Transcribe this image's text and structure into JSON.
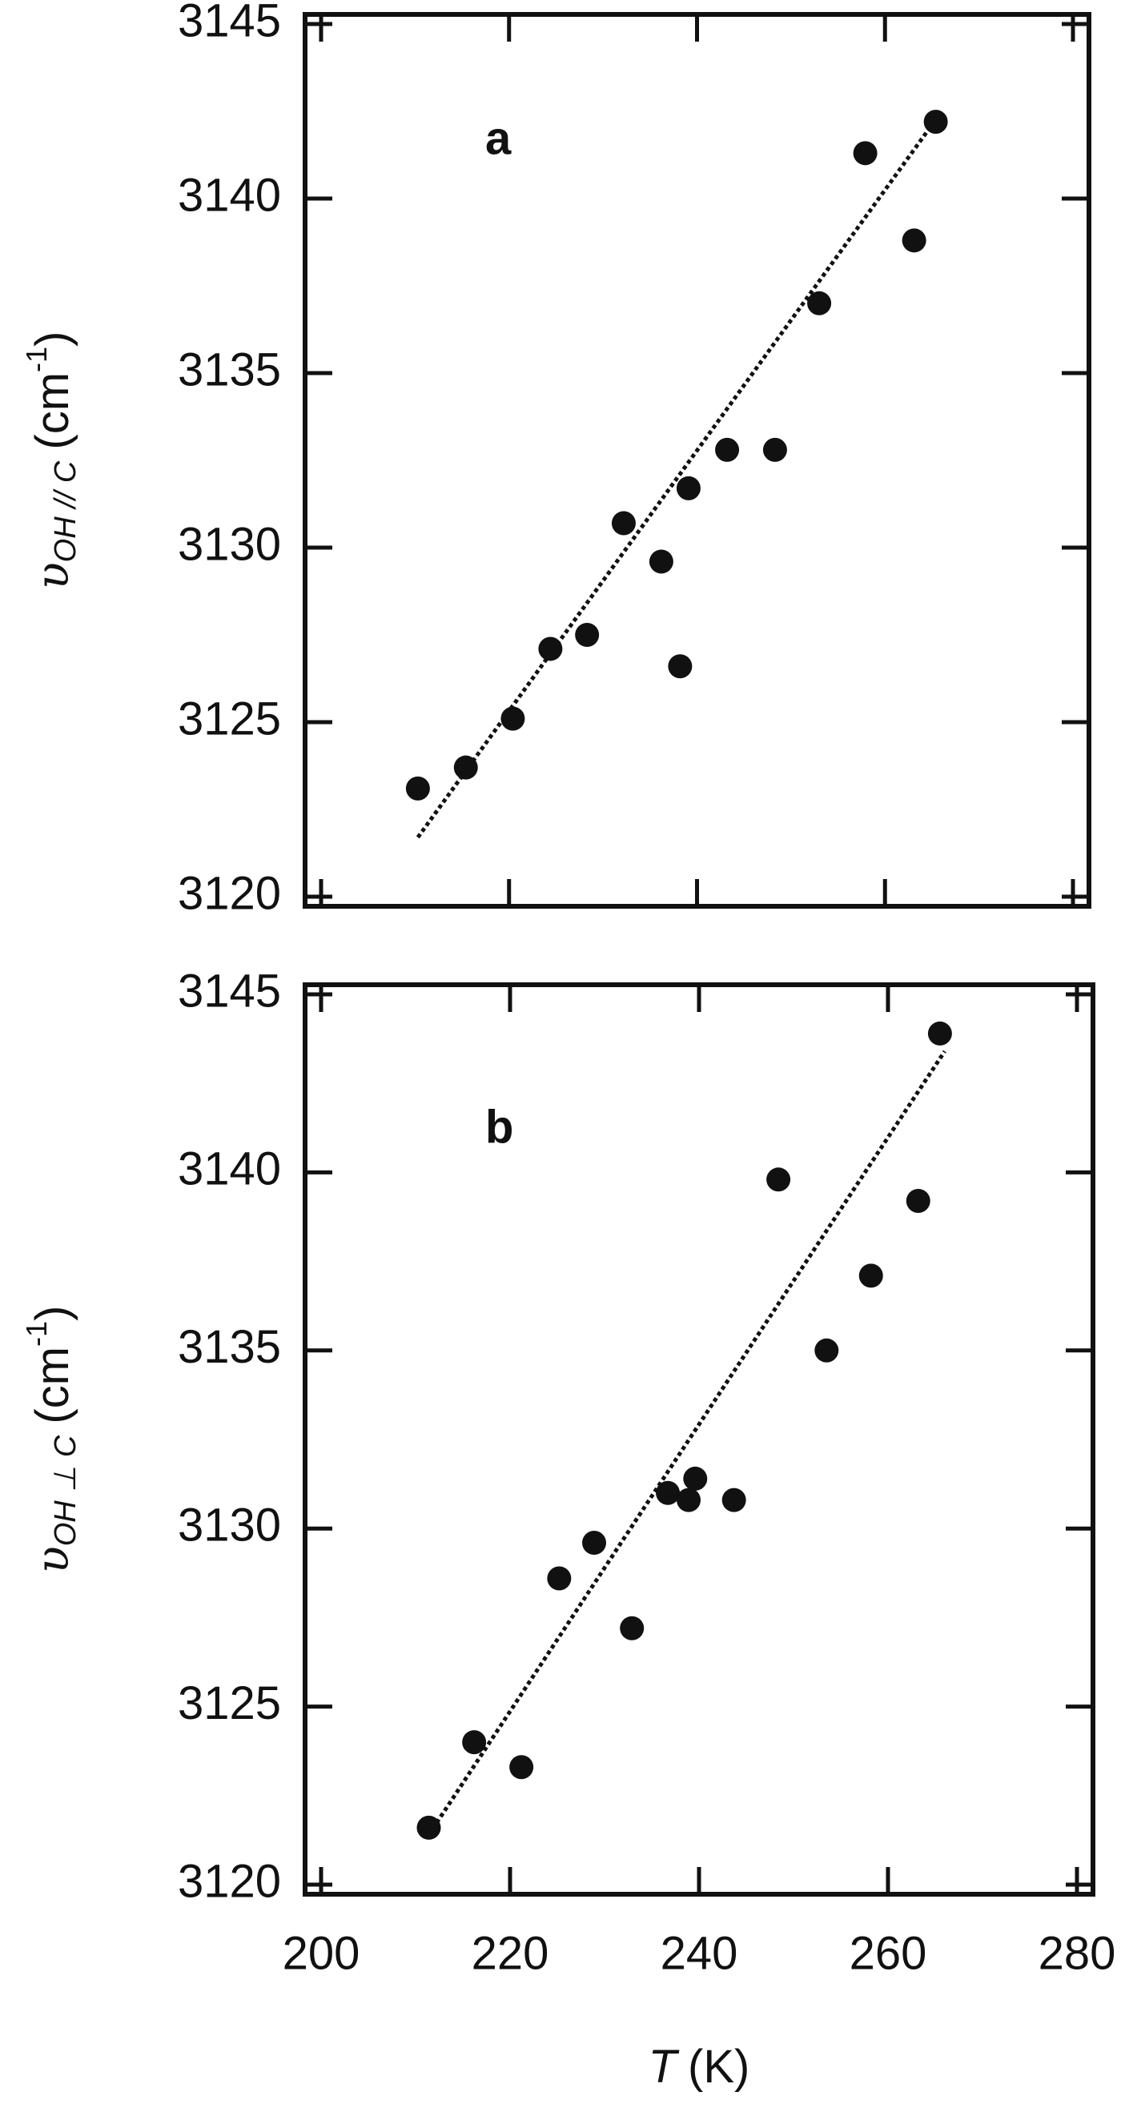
{
  "chart_data": [
    {
      "type": "scatter",
      "panel_label": "a",
      "ylabel": {
        "symbol": "υ",
        "subscript": "OH // C",
        "unit": "(cm",
        "exponent": "-1",
        "close": ")"
      },
      "x": [
        210.3,
        215.4,
        220.4,
        224.4,
        228.3,
        232.2,
        236.2,
        238.2,
        239.1,
        243.2,
        248.3,
        253.0,
        257.9,
        263.1,
        265.4
      ],
      "y": [
        3123.1,
        3123.7,
        3125.1,
        3127.1,
        3127.5,
        3130.7,
        3129.6,
        3126.6,
        3131.7,
        3132.8,
        3132.8,
        3137.0,
        3141.3,
        3138.8,
        3142.2
      ],
      "color": "#111111",
      "fit": {
        "x": [
          210.3,
          264.7
        ],
        "y": [
          3121.7,
          3142.0
        ]
      },
      "xlim": [
        200,
        280
      ],
      "ylim": [
        3120,
        3145
      ],
      "xticks": [
        200,
        220,
        240,
        260,
        280
      ],
      "yticks": [
        3120,
        3125,
        3130,
        3135,
        3140,
        3145
      ],
      "xtick_labels": false
    },
    {
      "type": "scatter",
      "panel_label": "b",
      "ylabel": {
        "symbol": "υ",
        "subscript": "OH ⊥ C",
        "unit": "(cm",
        "exponent": "-1",
        "close": ")"
      },
      "xlabel": {
        "symbol": "T",
        "unit": "(K)"
      },
      "x": [
        211.4,
        216.2,
        221.2,
        225.2,
        228.9,
        232.9,
        236.7,
        238.9,
        239.6,
        243.7,
        248.4,
        253.5,
        258.2,
        263.2,
        265.5
      ],
      "y": [
        3121.6,
        3124.0,
        3123.3,
        3128.6,
        3129.6,
        3127.2,
        3131.0,
        3130.8,
        3131.4,
        3130.8,
        3139.8,
        3135.0,
        3137.1,
        3139.2,
        3143.9
      ],
      "color": "#111111",
      "fit": {
        "x": [
          211.4,
          266.0
        ],
        "y": [
          3121.4,
          3143.4
        ]
      },
      "xlim": [
        200,
        280
      ],
      "ylim": [
        3120,
        3145
      ],
      "xticks": [
        200,
        220,
        240,
        260,
        280
      ],
      "yticks": [
        3120,
        3125,
        3130,
        3135,
        3140,
        3145
      ],
      "xtick_labels": true
    }
  ]
}
